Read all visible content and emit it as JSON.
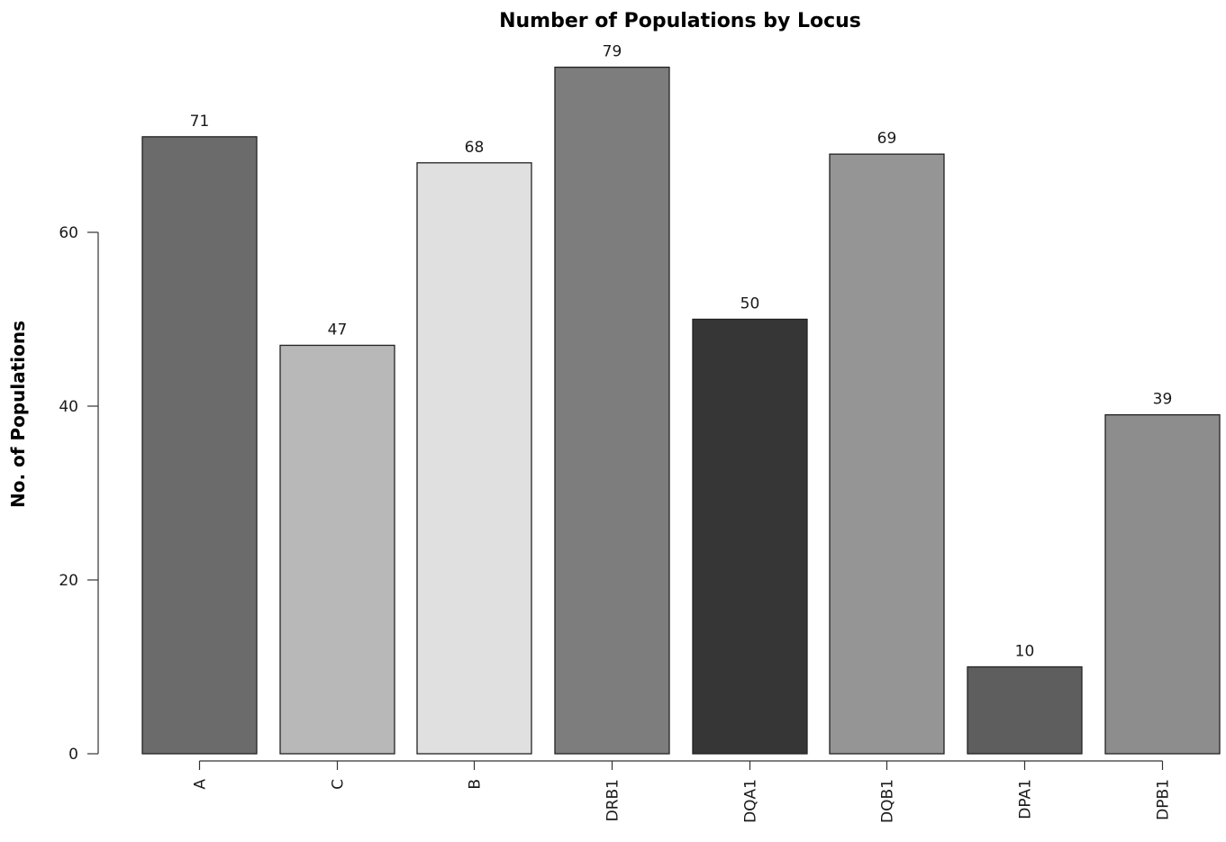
{
  "chart_data": {
    "type": "bar",
    "title": "Number of Populations by Locus",
    "xlabel": "",
    "ylabel": "No. of Populations",
    "categories": [
      "A",
      "C",
      "B",
      "DRB1",
      "DQA1",
      "DQB1",
      "DPA1",
      "DPB1"
    ],
    "values": [
      71,
      47,
      68,
      79,
      50,
      69,
      10,
      39
    ],
    "data_labels": [
      "71",
      "47",
      "68",
      "79",
      "50",
      "69",
      "10",
      "39"
    ],
    "bar_colors": [
      "#6b6b6b",
      "#b8b8b8",
      "#e0e0e0",
      "#7d7d7d",
      "#363636",
      "#959595",
      "#5e5e5e",
      "#8d8d8d"
    ],
    "yticks": [
      0,
      20,
      40,
      60
    ],
    "ytick_labels": [
      "0",
      "20",
      "40",
      "60"
    ],
    "ylim": [
      0,
      79
    ],
    "grid": false,
    "legend": "none"
  }
}
